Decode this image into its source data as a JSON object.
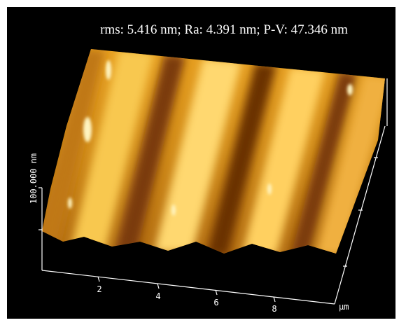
{
  "image": {
    "caption": "rms: 5.416 nm; Ra: 4.391 nm; P-V: 47.346 nm",
    "z_axis_label": "100.000 nm",
    "x_tick_labels": [
      "2",
      "4",
      "6",
      "8"
    ],
    "x_unit": "µm"
  }
}
